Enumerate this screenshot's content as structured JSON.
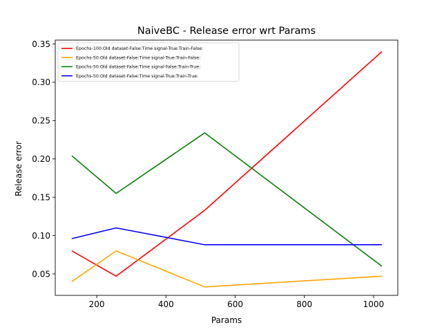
{
  "chart_data": {
    "type": "line",
    "title": "NaiveBC - Release error wrt Params",
    "xlabel": "Params",
    "ylabel": "Release error",
    "xlim": [
      80,
      1070
    ],
    "ylim": [
      0.022,
      0.355
    ],
    "xticks": [
      200,
      400,
      600,
      800,
      1000
    ],
    "xtick_labels": [
      "200",
      "400",
      "600",
      "800",
      "1000"
    ],
    "yticks": [
      0.05,
      0.1,
      0.15,
      0.2,
      0.25,
      0.3,
      0.35
    ],
    "ytick_labels": [
      "0.05",
      "0.10",
      "0.15",
      "0.20",
      "0.25",
      "0.30",
      "0.35"
    ],
    "grid": false,
    "legend_position": "upper-left",
    "x": [
      128,
      256,
      512,
      1024
    ],
    "series": [
      {
        "name": "Epochs-100:Old dataset-False:Time signal-True:Train-False:",
        "color": "#ff0000",
        "values": [
          0.08,
          0.047,
          0.133,
          0.34
        ]
      },
      {
        "name": "Epochs-50:Old dataset-False:Time signal-True:Train-False:",
        "color": "#ffa500",
        "values": [
          0.04,
          0.08,
          0.033,
          0.047
        ]
      },
      {
        "name": "Epochs-50:Old dataset-False:Time signal-False:Train-True:",
        "color": "#008000",
        "values": [
          0.204,
          0.155,
          0.234,
          0.06
        ]
      },
      {
        "name": "Epochs-50:Old dataset-False:Time signal-True:Train-True:",
        "color": "#0000ff",
        "values": [
          0.096,
          0.11,
          0.088,
          0.088
        ]
      }
    ]
  }
}
